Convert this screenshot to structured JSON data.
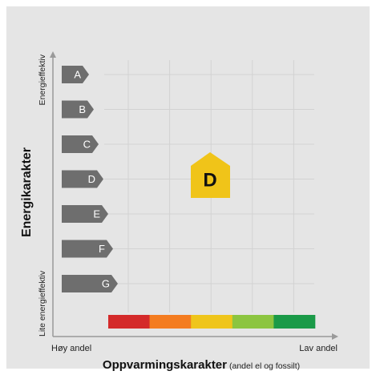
{
  "y_axis": {
    "title": "Energikarakter",
    "top_label": "Energieffektiv",
    "bottom_label": "Lite energieffektiv"
  },
  "energy_grades": [
    "A",
    "B",
    "C",
    "D",
    "E",
    "F",
    "G"
  ],
  "x_axis": {
    "title": "Oppvarmingskarakter",
    "subtitle": "(andel el og fossilt)",
    "left_label": "Høy andel",
    "right_label": "Lav andel"
  },
  "heating_scale_colors": [
    "#d42a2a",
    "#f47c20",
    "#efc51b",
    "#8cc540",
    "#1a9a48"
  ],
  "result": {
    "energy_grade": "D",
    "marker_color": "#f0c419"
  }
}
